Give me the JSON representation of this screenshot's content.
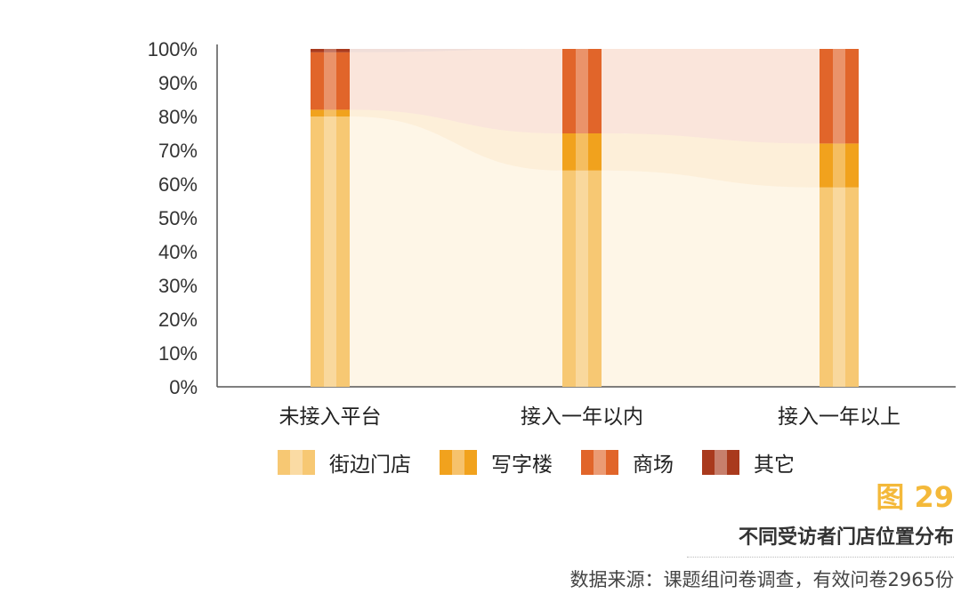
{
  "chart_data": {
    "type": "bar",
    "stacked": true,
    "categories": [
      "未接入平台",
      "接入一年以内",
      "接入一年以上"
    ],
    "series": [
      {
        "name": "街边门店",
        "color": "#f7c873",
        "values": [
          80,
          64,
          59
        ]
      },
      {
        "name": "写字楼",
        "color": "#f1a21d",
        "values": [
          2,
          11,
          13
        ]
      },
      {
        "name": "商场",
        "color": "#e1652a",
        "values": [
          17,
          25,
          28
        ]
      },
      {
        "name": "其它",
        "color": "#a93a1d",
        "values": [
          1,
          0,
          0
        ]
      }
    ],
    "ylim": [
      0,
      100
    ],
    "yticks": [
      "0%",
      "10%",
      "20%",
      "30%",
      "40%",
      "50%",
      "60%",
      "70%",
      "80%",
      "90%",
      "100%"
    ],
    "legend_position": "bottom"
  },
  "caption": {
    "figure_number": "图 29",
    "title": "不同受访者门店位置分布",
    "source": "数据来源：课题组问卷调查，有效问卷2965份"
  }
}
